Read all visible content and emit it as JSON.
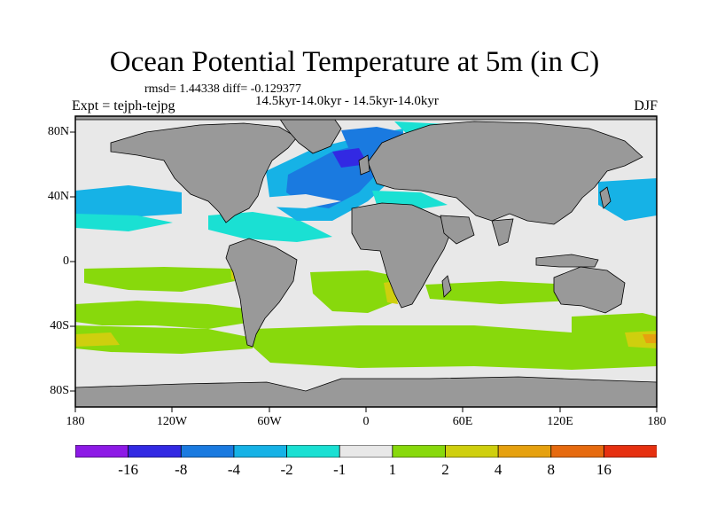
{
  "title": "Ocean Potential Temperature at 5m (in C)",
  "stats": "rmsd= 1.44338 diff= -0.129377",
  "period": "14.5kyr-14.0kyr - 14.5kyr-14.0kyr",
  "experiment": "Expt = tejph-tejpg",
  "season": "DJF",
  "lat_ticks": [
    "80N",
    "40N",
    "0",
    "40S",
    "80S"
  ],
  "lon_ticks": [
    "180",
    "120W",
    "60W",
    "0",
    "60E",
    "120E",
    "180"
  ],
  "colorbar": {
    "labels": [
      "-16",
      "-8",
      "-4",
      "-2",
      "-1",
      "1",
      "2",
      "4",
      "8",
      "16"
    ],
    "colors": [
      "#8d1ae6",
      "#3229e3",
      "#1a7ae0",
      "#16b2e6",
      "#1ae0d3",
      "#e8e8e8",
      "#88d90c",
      "#cfcf0e",
      "#e6a10f",
      "#e66a0f",
      "#e63010"
    ]
  },
  "map_colors": {
    "ocean_neutral": "#e8e8e8",
    "land": "#999999",
    "coast": "#000000"
  }
}
